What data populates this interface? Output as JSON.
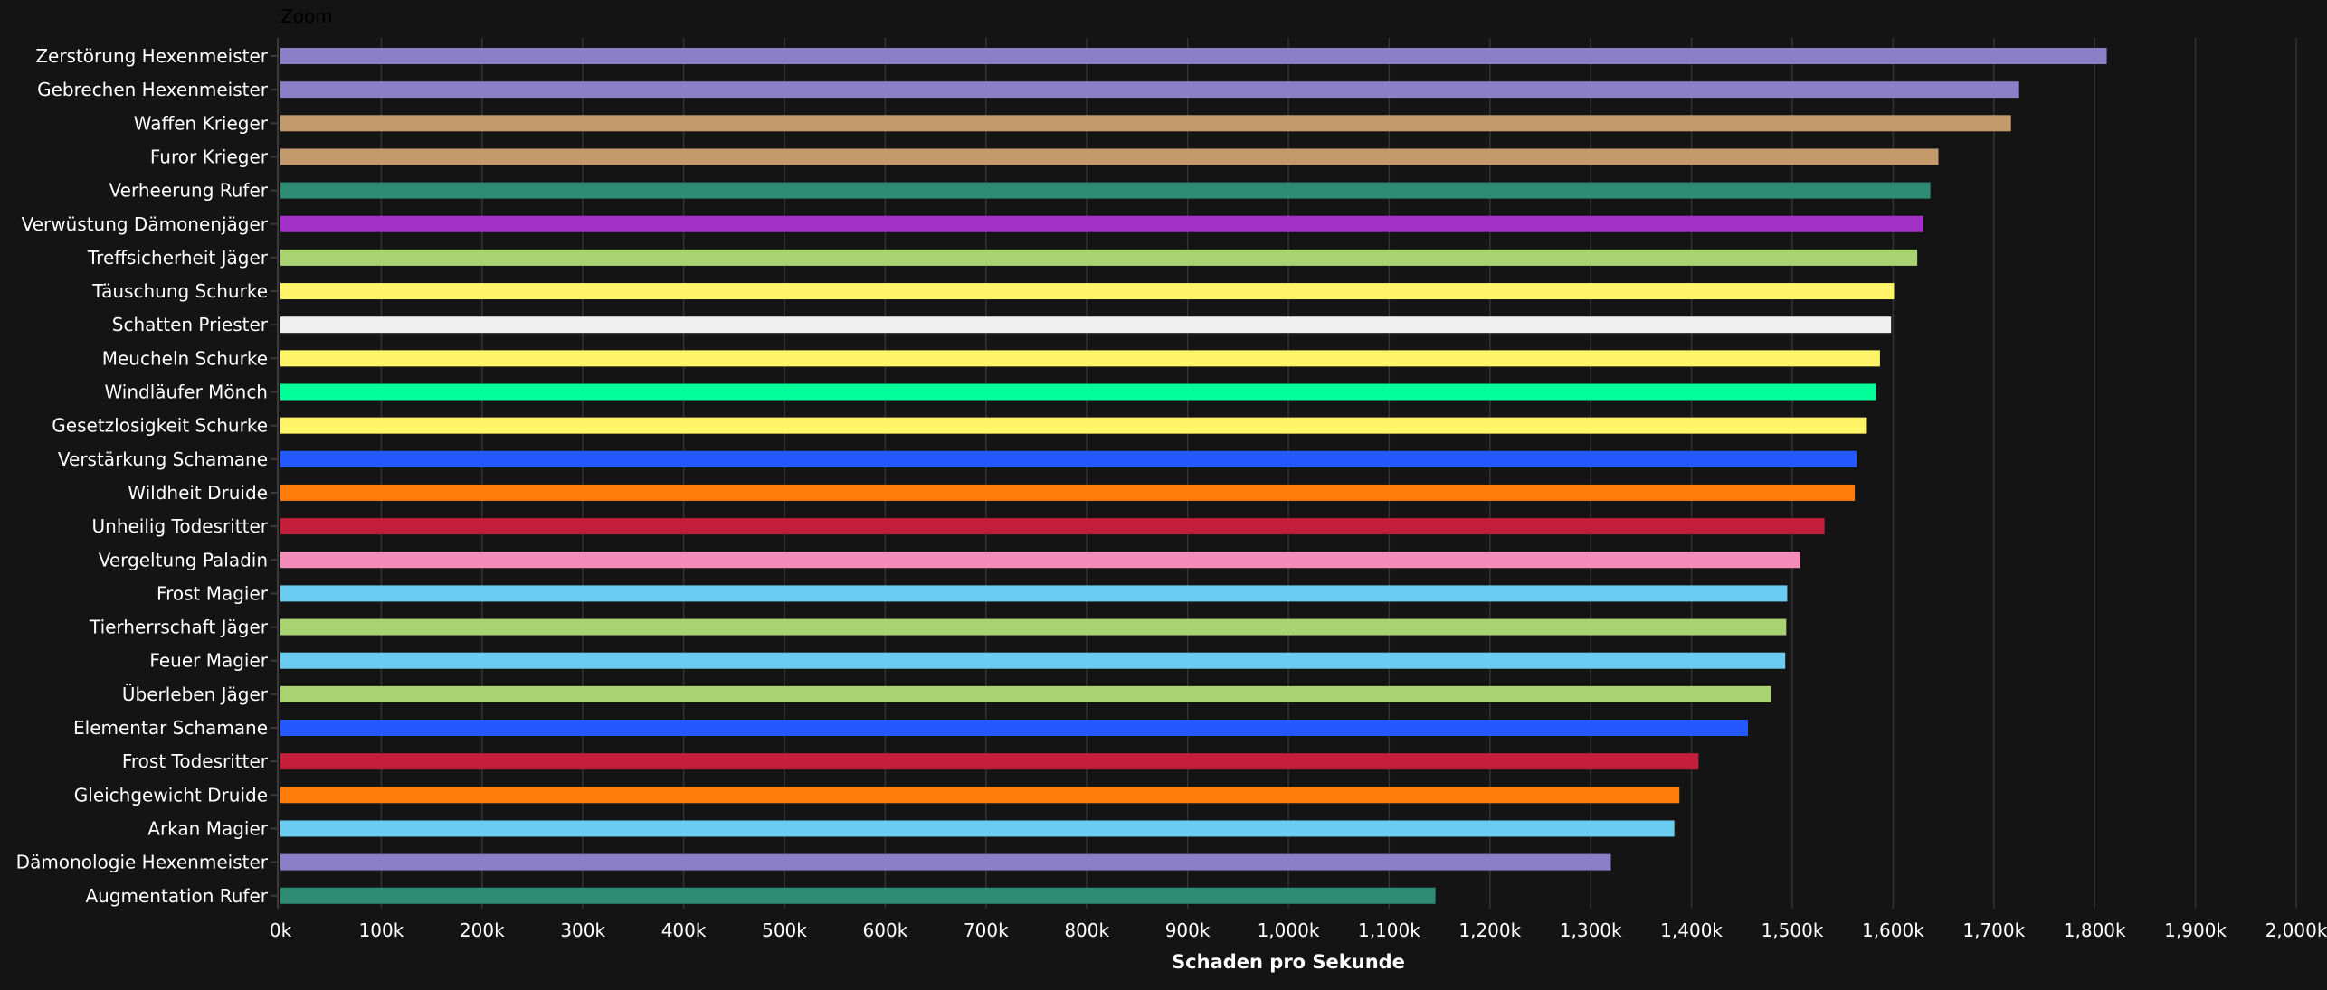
{
  "zoom_label": "Zoom",
  "chart_data": {
    "type": "bar",
    "orientation": "horizontal",
    "title": "",
    "xlabel": "Schaden pro Sekunde",
    "ylabel": "",
    "xlim": [
      0,
      2000000
    ],
    "x_tick_values": [
      0,
      100000,
      200000,
      300000,
      400000,
      500000,
      600000,
      700000,
      800000,
      900000,
      1000000,
      1100000,
      1200000,
      1300000,
      1400000,
      1500000,
      1600000,
      1700000,
      1800000,
      1900000,
      2000000
    ],
    "x_tick_labels": [
      "0k",
      "100k",
      "200k",
      "300k",
      "400k",
      "500k",
      "600k",
      "700k",
      "800k",
      "900k",
      "1,000k",
      "1,100k",
      "1,200k",
      "1,300k",
      "1,400k",
      "1,500k",
      "1,600k",
      "1,700k",
      "1,800k",
      "1,900k",
      "2,000k"
    ],
    "grid": "vertical",
    "categories": [
      "Zerstörung Hexenmeister",
      "Gebrechen Hexenmeister",
      "Waffen Krieger",
      "Furor Krieger",
      "Verheerung Rufer",
      "Verwüstung Dämonenjäger",
      "Treffsicherheit Jäger",
      "Täuschung Schurke",
      "Schatten Priester",
      "Meucheln Schurke",
      "Windläufer Mönch",
      "Gesetzlosigkeit Schurke",
      "Verstärkung Schamane",
      "Wildheit Druide",
      "Unheilig Todesritter",
      "Vergeltung Paladin",
      "Frost Magier",
      "Tierherrschaft Jäger",
      "Feuer Magier",
      "Überleben Jäger",
      "Elementar Schamane",
      "Frost Todesritter",
      "Gleichgewicht Druide",
      "Arkan Magier",
      "Dämonologie Hexenmeister",
      "Augmentation Rufer"
    ],
    "values": [
      1812000,
      1725000,
      1717000,
      1645000,
      1637000,
      1630000,
      1624000,
      1601000,
      1598000,
      1587000,
      1583000,
      1574000,
      1564000,
      1562000,
      1532000,
      1508000,
      1495000,
      1494000,
      1493000,
      1479000,
      1456000,
      1407000,
      1388000,
      1383000,
      1320000,
      1146000
    ],
    "colors": [
      "#8b7fc8",
      "#8b7fc8",
      "#c49a6c",
      "#c49a6c",
      "#2e8b74",
      "#a330c9",
      "#a9d271",
      "#fff468",
      "#f0f0f0",
      "#fff468",
      "#00ff98",
      "#fff468",
      "#2459ff",
      "#ff7c0a",
      "#c41e3a",
      "#f48cba",
      "#69ccf0",
      "#a9d271",
      "#69ccf0",
      "#a9d271",
      "#2459ff",
      "#c41e3a",
      "#ff7c0a",
      "#69ccf0",
      "#8b7fc8",
      "#2e8b74"
    ]
  }
}
